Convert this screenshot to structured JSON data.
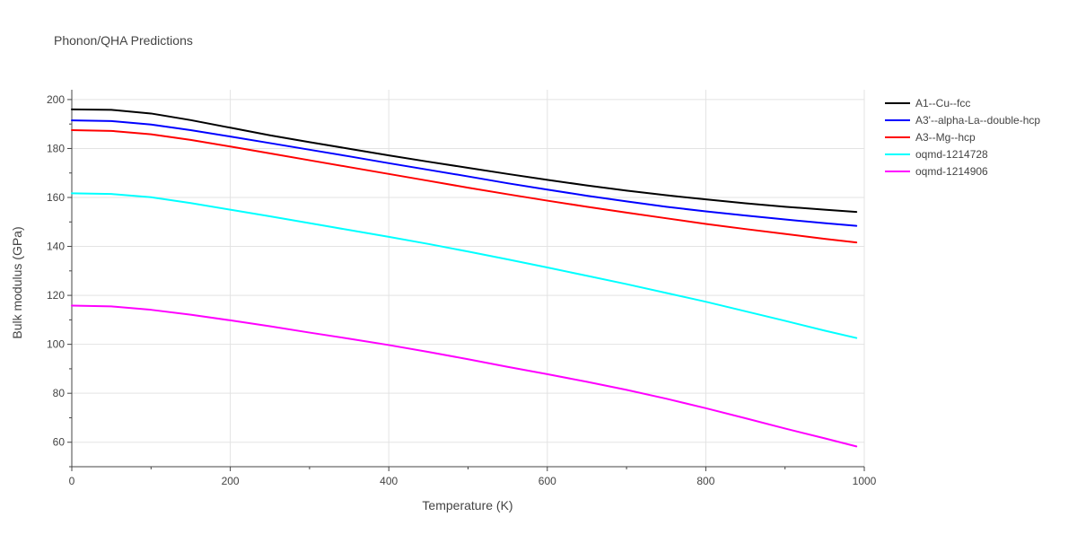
{
  "chart_data": {
    "type": "line",
    "title": "Phonon/QHA Predictions",
    "xlabel": "Temperature (K)",
    "ylabel": "Bulk modulus (GPa)",
    "xlim": [
      0,
      1000
    ],
    "ylim": [
      50,
      204
    ],
    "xticks": [
      0,
      200,
      400,
      600,
      800,
      1000
    ],
    "yticks": [
      60,
      80,
      100,
      120,
      140,
      160,
      180,
      200
    ],
    "grid": true,
    "legend_position": "top-right",
    "series": [
      {
        "name": "A1--Cu--fcc",
        "color": "#000000",
        "x": [
          0,
          50,
          100,
          150,
          200,
          250,
          300,
          350,
          400,
          450,
          500,
          550,
          600,
          650,
          700,
          750,
          800,
          850,
          900,
          950,
          990
        ],
        "y": [
          196,
          195.8,
          194.3,
          191.6,
          188.5,
          185.4,
          182.6,
          179.9,
          177.2,
          174.6,
          172.1,
          169.6,
          167.2,
          164.9,
          162.8,
          160.9,
          159.2,
          157.6,
          156.2,
          155.0,
          154.1
        ]
      },
      {
        "name": "A3'--alpha-La--double-hcp",
        "color": "#0000ff",
        "x": [
          0,
          50,
          100,
          150,
          200,
          250,
          300,
          350,
          400,
          450,
          500,
          550,
          600,
          650,
          700,
          750,
          800,
          850,
          900,
          950,
          990
        ],
        "y": [
          191.5,
          191.2,
          189.8,
          187.5,
          184.9,
          182.2,
          179.5,
          176.8,
          174.0,
          171.3,
          168.6,
          165.8,
          163.2,
          160.7,
          158.4,
          156.2,
          154.3,
          152.6,
          151.0,
          149.5,
          148.4
        ]
      },
      {
        "name": "A3--Mg--hcp",
        "color": "#ff0000",
        "x": [
          0,
          50,
          100,
          150,
          200,
          250,
          300,
          350,
          400,
          450,
          500,
          550,
          600,
          650,
          700,
          750,
          800,
          850,
          900,
          950,
          990
        ],
        "y": [
          187.5,
          187.2,
          185.8,
          183.5,
          180.8,
          178.0,
          175.2,
          172.4,
          169.6,
          166.8,
          164.0,
          161.3,
          158.7,
          156.2,
          153.8,
          151.5,
          149.2,
          147.1,
          145.1,
          143.1,
          141.6
        ]
      },
      {
        "name": "oqmd-1214728",
        "color": "#00ffff",
        "x": [
          0,
          50,
          100,
          150,
          200,
          250,
          300,
          350,
          400,
          450,
          500,
          550,
          600,
          650,
          700,
          750,
          800,
          850,
          900,
          950,
          990
        ],
        "y": [
          161.7,
          161.4,
          160.1,
          157.7,
          155.0,
          152.3,
          149.5,
          146.7,
          143.9,
          141.0,
          137.9,
          134.7,
          131.4,
          128.0,
          124.6,
          121.0,
          117.4,
          113.5,
          109.6,
          105.6,
          102.6
        ]
      },
      {
        "name": "oqmd-1214906",
        "color": "#ff00ff",
        "x": [
          0,
          50,
          100,
          150,
          200,
          250,
          300,
          350,
          400,
          450,
          500,
          550,
          600,
          650,
          700,
          750,
          800,
          850,
          900,
          950,
          990
        ],
        "y": [
          115.8,
          115.5,
          114.1,
          112.1,
          109.8,
          107.4,
          104.8,
          102.3,
          99.7,
          96.9,
          93.9,
          90.8,
          87.8,
          84.7,
          81.4,
          77.8,
          73.9,
          69.8,
          65.6,
          61.6,
          58.3
        ]
      }
    ]
  }
}
